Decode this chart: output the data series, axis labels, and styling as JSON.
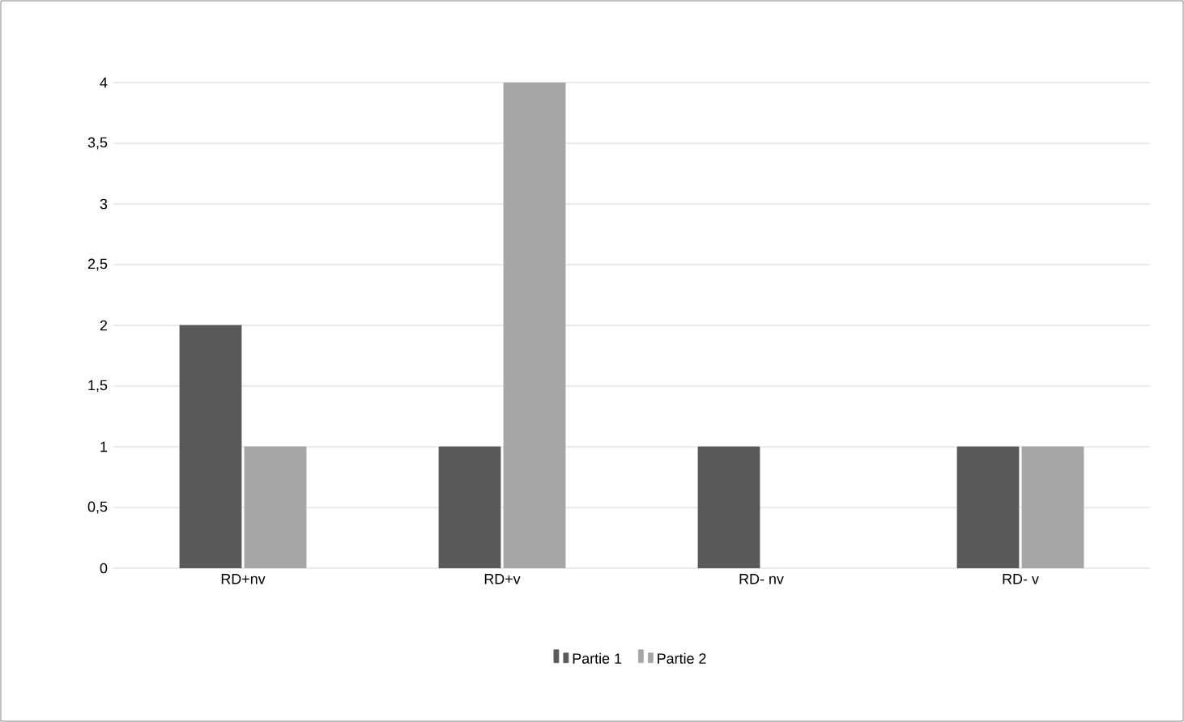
{
  "chart_data": {
    "type": "bar",
    "categories": [
      "RD+nv",
      "RD+v",
      "RD- nv",
      "RD- v"
    ],
    "series": [
      {
        "name": "Partie 1",
        "color": "#595959",
        "values": [
          2,
          1,
          1,
          1
        ]
      },
      {
        "name": "Partie 2",
        "color": "#a6a6a6",
        "values": [
          1,
          4,
          null,
          1
        ]
      }
    ],
    "ylim": [
      0,
      4
    ],
    "yticks": [
      0,
      {
        "value": 0.5,
        "label": "0,5"
      },
      1,
      {
        "value": 1.5,
        "label": "1,5"
      },
      2,
      {
        "value": 2.5,
        "label": "2,5"
      },
      3,
      {
        "value": 3.5,
        "label": "3,5"
      },
      4
    ],
    "grid": "y",
    "legend": "bottom"
  }
}
